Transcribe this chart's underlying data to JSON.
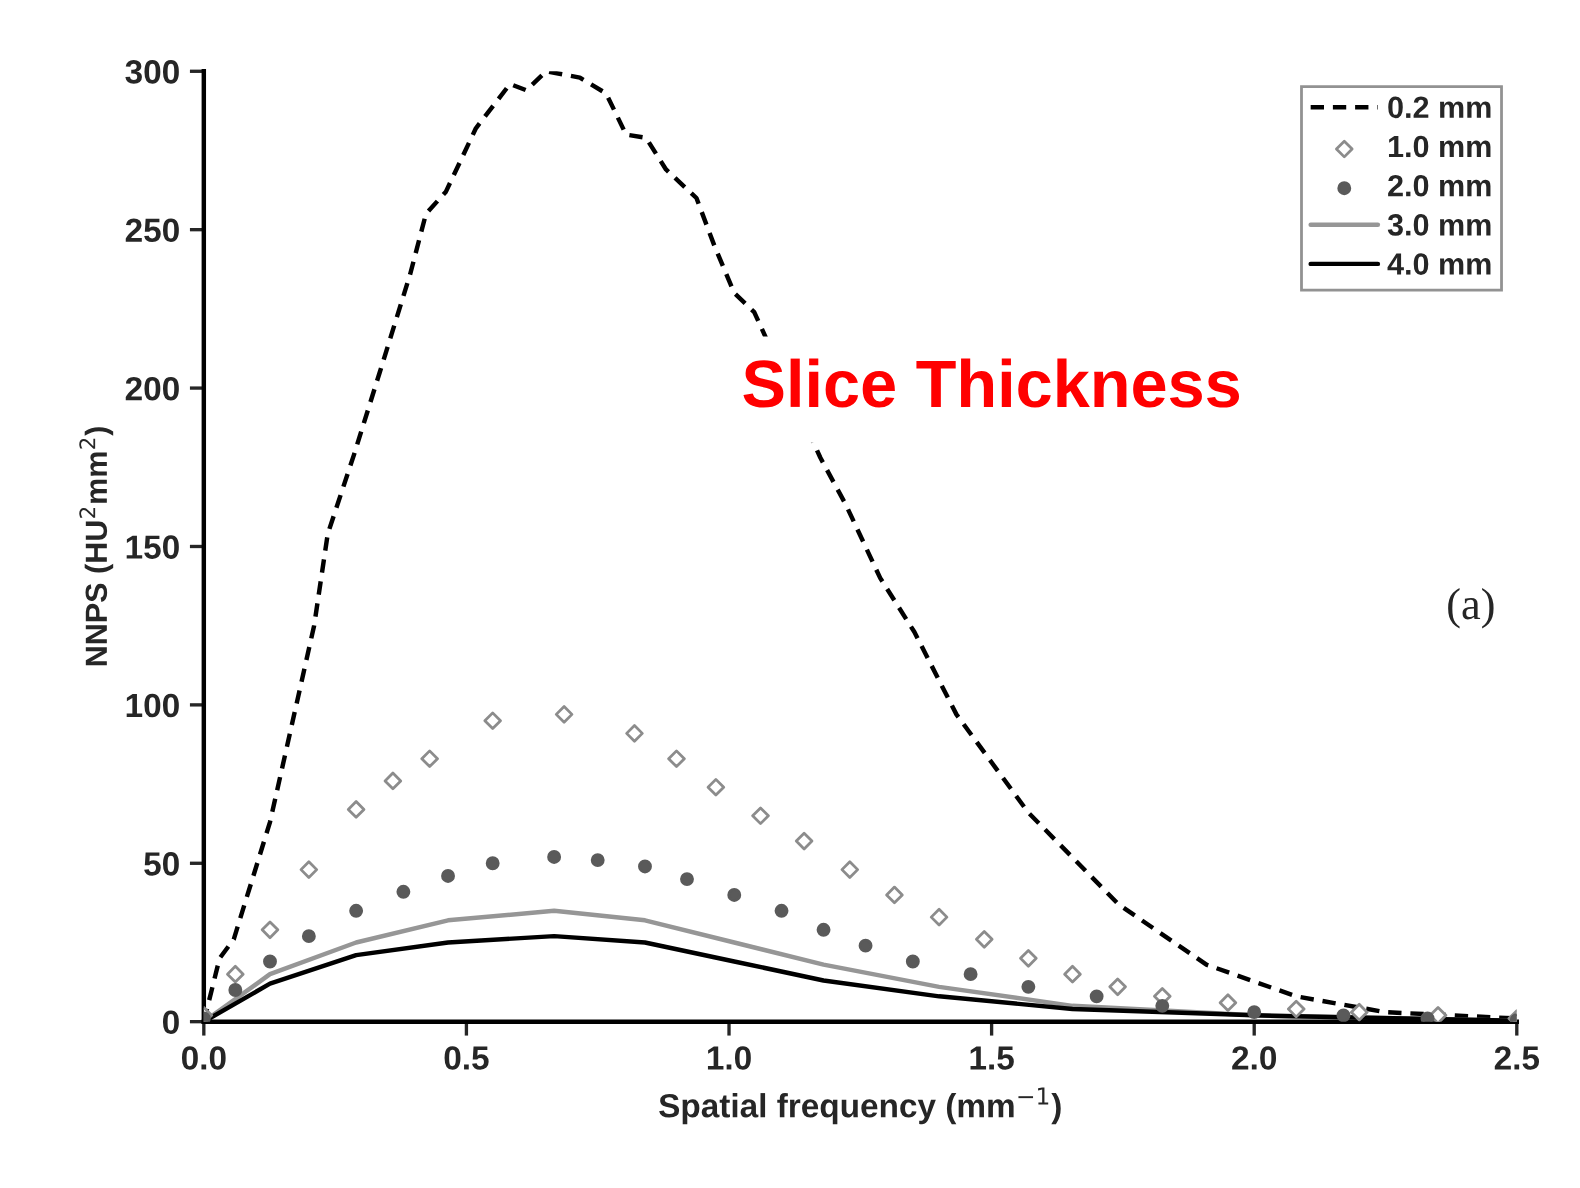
{
  "chart_data": {
    "type": "line",
    "xlabel": "Spatial frequency (mm$^{−1}$)",
    "ylabel": "NNPS (HU$^{2}$mm$^{2}$)",
    "xlim": [
      0,
      2.5
    ],
    "ylim": [
      0,
      300
    ],
    "xticks": [
      {
        "value": 0,
        "label": "0.0"
      },
      0.5,
      {
        "value": 1,
        "label": "1.0"
      },
      1.5,
      {
        "value": 2,
        "label": "2.0"
      },
      2.5
    ],
    "yticks": [
      0,
      50,
      100,
      150,
      200,
      250,
      300
    ],
    "grid": false,
    "legend": "top right",
    "annotations": [
      "Slice Thickness",
      "(a)"
    ],
    "series": [
      {
        "name": "0.2 mm",
        "line_style": "dashed",
        "marker": "none",
        "color": "#000000",
        "x": [
          0,
          0.03,
          0.057,
          0.126,
          0.21,
          0.236,
          0.286,
          0.335,
          0.393,
          0.423,
          0.461,
          0.518,
          0.583,
          0.614,
          0.652,
          0.716,
          0.766,
          0.804,
          0.842,
          0.88,
          0.938,
          0.972,
          1.01,
          1.048,
          1.174,
          1.223,
          1.288,
          1.353,
          1.433,
          1.57,
          1.742,
          1.909,
          2.08,
          2.25,
          2.5
        ],
        "values": [
          0,
          20,
          26,
          63,
          125,
          154,
          179,
          205,
          236,
          255,
          262,
          282,
          296,
          294,
          300,
          298,
          293,
          280,
          279,
          269,
          260,
          245,
          230,
          224,
          178,
          163,
          140,
          123,
          97,
          66,
          37,
          18,
          8,
          3,
          1
        ]
      },
      {
        "name": "1.0 mm",
        "type": "scatter",
        "marker": "diamond",
        "color": "#8c8c8c",
        "x": [
          0,
          0.06,
          0.126,
          0.2,
          0.29,
          0.36,
          0.43,
          0.55,
          0.686,
          0.82,
          0.9,
          0.975,
          1.06,
          1.143,
          1.23,
          1.315,
          1.4,
          1.486,
          1.57,
          1.654,
          1.74,
          1.825,
          1.95,
          2.08,
          2.2,
          2.35,
          2.5
        ],
        "values": [
          2,
          15,
          29,
          48,
          67,
          76,
          83,
          95,
          97,
          91,
          83,
          74,
          65,
          57,
          48,
          40,
          33,
          26,
          20,
          15,
          11,
          8,
          6,
          4,
          3,
          2,
          1
        ]
      },
      {
        "name": "2.0 mm",
        "type": "scatter",
        "marker": "circle",
        "color": "#5a5a5a",
        "x": [
          0,
          0.06,
          0.126,
          0.2,
          0.29,
          0.38,
          0.465,
          0.55,
          0.667,
          0.75,
          0.84,
          0.92,
          1.01,
          1.1,
          1.18,
          1.26,
          1.35,
          1.46,
          1.57,
          1.7,
          1.825,
          2.0,
          2.17,
          2.33,
          2.5
        ],
        "values": [
          1,
          10,
          19,
          27,
          35,
          41,
          46,
          50,
          52,
          51,
          49,
          45,
          40,
          35,
          29,
          24,
          19,
          15,
          11,
          8,
          5,
          3,
          2,
          1,
          0.5
        ]
      },
      {
        "name": "3.0 mm",
        "line_style": "solid",
        "marker": "none",
        "color": "#969696",
        "x": [
          0,
          0.126,
          0.29,
          0.465,
          0.667,
          0.84,
          1.01,
          1.18,
          1.4,
          1.654,
          2.0,
          2.5
        ],
        "values": [
          0,
          15,
          25,
          32,
          35,
          32,
          25,
          18,
          11,
          5,
          2,
          0.3
        ]
      },
      {
        "name": "4.0 mm",
        "line_style": "solid",
        "marker": "none",
        "color": "#000000",
        "x": [
          0,
          0.126,
          0.29,
          0.465,
          0.667,
          0.84,
          1.01,
          1.18,
          1.4,
          1.654,
          2.0,
          2.5
        ],
        "values": [
          0,
          12,
          21,
          25,
          27,
          25,
          19,
          13,
          8,
          4,
          2,
          0.3
        ]
      }
    ]
  }
}
